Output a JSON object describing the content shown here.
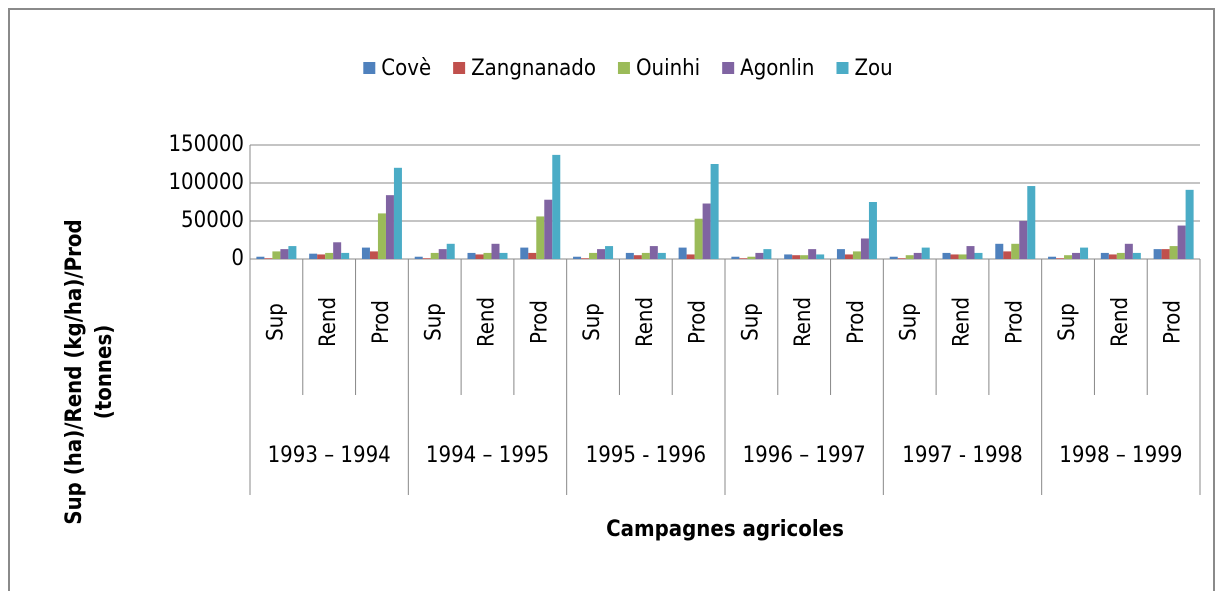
{
  "chart_data": {
    "type": "bar",
    "ylabel": [
      "Sup (ha)/Rend (kg/ha)/Prod",
      "(tonnes)"
    ],
    "xlabel": "Campagnes agricoles",
    "groups": [
      "1993 – 1994",
      "1994 – 1995",
      "1995 - 1996",
      "1996 – 1997",
      "1997 - 1998",
      "1998 – 1999"
    ],
    "categories": [
      "Sup",
      "Rend",
      "Prod",
      "Sup",
      "Rend",
      "Prod",
      "Sup",
      "Rend",
      "Prod",
      "Sup",
      "Rend",
      "Prod",
      "Sup",
      "Rend",
      "Prod",
      "Sup",
      "Rend",
      "Prod"
    ],
    "series": [
      {
        "name": "Covè",
        "color": "#4f81bd",
        "values": [
          3000,
          7000,
          15000,
          3000,
          8000,
          15000,
          3000,
          8000,
          15000,
          3000,
          6000,
          13000,
          3000,
          8000,
          20000,
          3000,
          8000,
          13000
        ]
      },
      {
        "name": "Zangnanado",
        "color": "#c0504d",
        "values": [
          1000,
          6000,
          10000,
          1000,
          6000,
          8000,
          1000,
          5000,
          6000,
          1000,
          5000,
          6000,
          1000,
          6000,
          10000,
          1000,
          6000,
          13000
        ]
      },
      {
        "name": "Ouinhi",
        "color": "#9bbb59",
        "values": [
          10000,
          8000,
          60000,
          8000,
          8000,
          56000,
          8000,
          8000,
          53000,
          3000,
          5000,
          10000,
          5000,
          6000,
          20000,
          5000,
          8000,
          17000
        ]
      },
      {
        "name": "Agonlin",
        "color": "#8064a2",
        "values": [
          13000,
          22000,
          84000,
          13000,
          20000,
          78000,
          13000,
          17000,
          73000,
          8000,
          13000,
          27000,
          8000,
          17000,
          50000,
          8000,
          20000,
          44000
        ]
      },
      {
        "name": "Zou",
        "color": "#4bacc6",
        "values": [
          17000,
          8000,
          120000,
          20000,
          8000,
          137000,
          17000,
          8000,
          125000,
          13000,
          6000,
          75000,
          15000,
          8000,
          96000,
          15000,
          8000,
          91000
        ]
      }
    ],
    "ylim": [
      0,
      150000
    ],
    "yticks": [
      0,
      50000,
      100000,
      150000
    ],
    "grid": true,
    "legend": "top"
  }
}
